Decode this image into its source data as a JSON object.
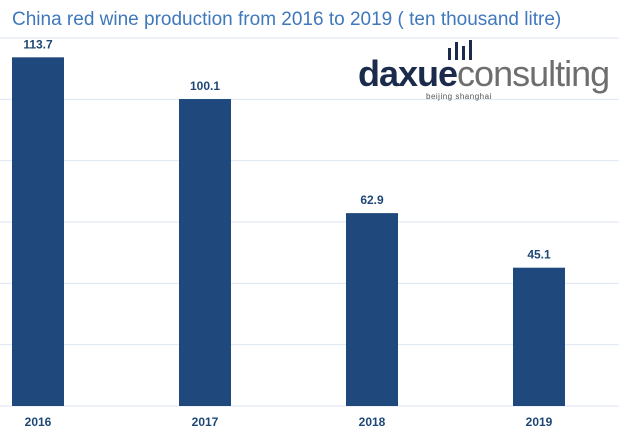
{
  "chart_data": {
    "type": "bar",
    "title": "China red wine production from 2016 to 2019 ( ten thousand litre)",
    "categories": [
      "2016",
      "2017",
      "2018",
      "2019"
    ],
    "values": [
      113.7,
      100.1,
      62.9,
      45.1
    ],
    "value_labels": [
      "113.7",
      "100.1",
      "62.9",
      "45.1"
    ],
    "xlabel": "",
    "ylabel": "",
    "ylim": [
      0,
      120
    ],
    "grid": true,
    "legend": "none",
    "bar_color": "#1f497d",
    "grid_color": "#dde6f0"
  },
  "logo": {
    "word_a": "daxue",
    "word_b": "consulting",
    "tagline": "beijing shanghai",
    "colors": {
      "dark": "#1b2b4b",
      "grey": "#6e6e6e"
    }
  }
}
